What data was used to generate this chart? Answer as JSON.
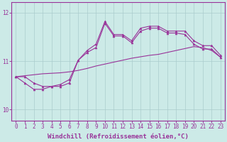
{
  "bg_color": "#cceae7",
  "grid_color": "#aacccc",
  "line_color": "#993399",
  "xlabel": "Windchill (Refroidissement éolien,°C)",
  "xlim": [
    -0.5,
    23.5
  ],
  "ylim": [
    9.78,
    12.22
  ],
  "yticks": [
    10,
    11,
    12
  ],
  "xticks": [
    0,
    1,
    2,
    3,
    4,
    5,
    6,
    7,
    8,
    9,
    10,
    11,
    12,
    13,
    14,
    15,
    16,
    17,
    18,
    19,
    20,
    21,
    22,
    23
  ],
  "line1_x": [
    0,
    1,
    2,
    3,
    4,
    5,
    6,
    7,
    8,
    9,
    10,
    11,
    12,
    13,
    14,
    15,
    16,
    17,
    18,
    19,
    20,
    21,
    22,
    23
  ],
  "line1_y": [
    10.68,
    10.68,
    10.55,
    10.48,
    10.48,
    10.52,
    10.62,
    11.02,
    11.18,
    11.28,
    11.78,
    11.52,
    11.52,
    11.38,
    11.62,
    11.68,
    11.68,
    11.58,
    11.58,
    11.55,
    11.35,
    11.25,
    11.25,
    11.08
  ],
  "line2_x": [
    0,
    1,
    2,
    3,
    4,
    5,
    6,
    7,
    8,
    9,
    10,
    11,
    12,
    13,
    14,
    15,
    16,
    17,
    18,
    19,
    20,
    21,
    22,
    23
  ],
  "line2_y": [
    10.68,
    10.55,
    10.42,
    10.42,
    10.48,
    10.48,
    10.55,
    11.02,
    11.22,
    11.35,
    11.82,
    11.55,
    11.55,
    11.42,
    11.68,
    11.72,
    11.72,
    11.62,
    11.62,
    11.62,
    11.42,
    11.32,
    11.32,
    11.12
  ],
  "line3_x": [
    0,
    1,
    2,
    3,
    4,
    5,
    6,
    7,
    8,
    9,
    10,
    11,
    12,
    13,
    14,
    15,
    16,
    17,
    18,
    19,
    20,
    21,
    22,
    23
  ],
  "line3_y": [
    10.68,
    10.7,
    10.72,
    10.74,
    10.75,
    10.76,
    10.78,
    10.81,
    10.85,
    10.9,
    10.94,
    10.98,
    11.02,
    11.06,
    11.09,
    11.12,
    11.14,
    11.18,
    11.22,
    11.26,
    11.3,
    11.28,
    11.22,
    11.08
  ],
  "figsize": [
    3.2,
    2.0
  ],
  "dpi": 100,
  "tick_fontsize": 5.5,
  "label_fontsize": 6.5
}
